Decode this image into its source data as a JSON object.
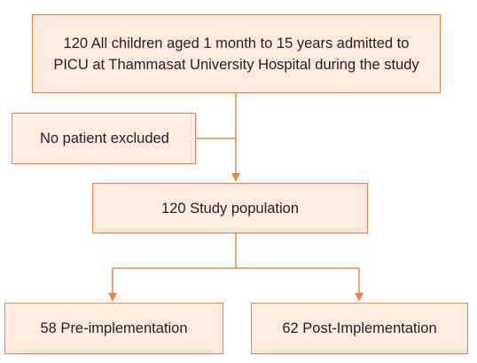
{
  "boxes": {
    "all_children": {
      "line1": "120 All children aged 1 month to 15 years admitted to",
      "line2": "PICU at Thammasat University Hospital during the study"
    },
    "excluded": {
      "label": "No patient excluded"
    },
    "study_population": {
      "label": "120 Study population"
    },
    "pre_implementation": {
      "label": "58 Pre-implementation"
    },
    "post_implementation": {
      "label": "62 Post-Implementation"
    }
  },
  "colors": {
    "box_fill": "#fdebe0",
    "box_border": "#e7874b",
    "connector": "#e7874b",
    "text": "#231f20"
  }
}
